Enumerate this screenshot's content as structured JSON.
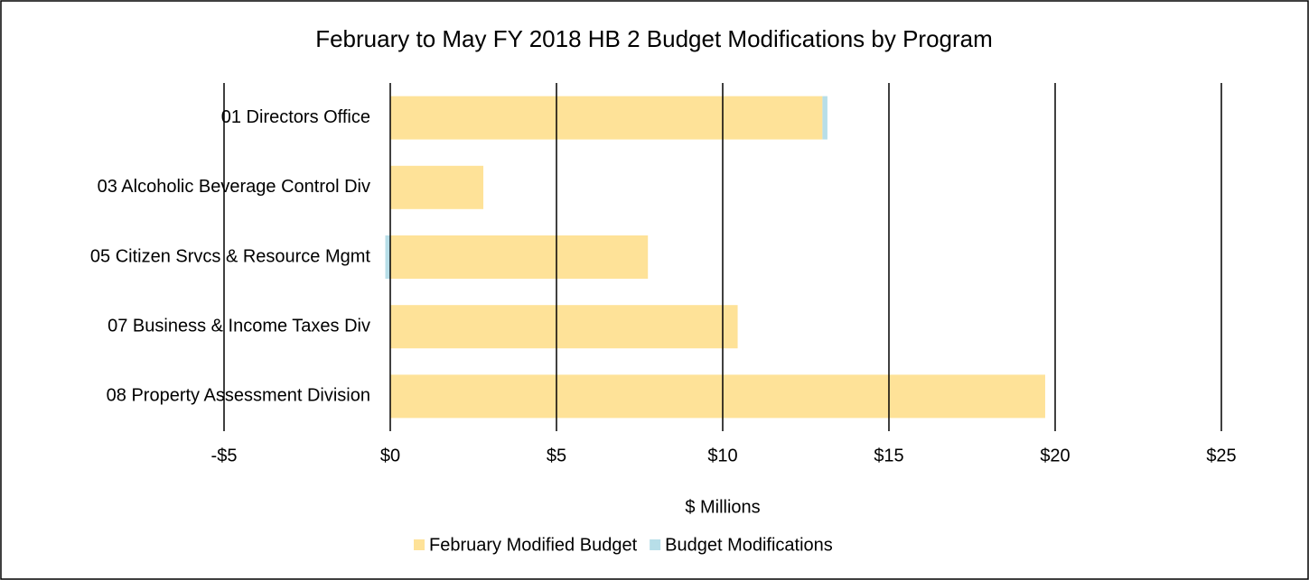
{
  "chart_data": {
    "type": "bar",
    "orientation": "horizontal",
    "stacked": true,
    "title": "February to May FY 2018 HB 2 Budget Modifications by Program",
    "x_label": "$ Millions",
    "categories": [
      "01 Directors Office",
      "03 Alcoholic Beverage Control Div",
      "05 Citizen Srvcs & Resource Mgmt",
      "07 Business & Income Taxes Div",
      "08 Property Assessment Division"
    ],
    "series": [
      {
        "name": "February Modified Budget",
        "color": "#fee298",
        "values": [
          13.0,
          2.8,
          7.75,
          10.45,
          19.7
        ]
      },
      {
        "name": "Budget Modifications",
        "color": "#b7dee8",
        "values": [
          0.15,
          0,
          -0.15,
          0,
          0
        ]
      }
    ],
    "xlim": [
      -5,
      25
    ],
    "xticks": [
      {
        "value": -5,
        "label": "-$5"
      },
      {
        "value": 0,
        "label": "$0"
      },
      {
        "value": 5,
        "label": "$5"
      },
      {
        "value": 10,
        "label": "$10"
      },
      {
        "value": 15,
        "label": "$15"
      },
      {
        "value": 20,
        "label": "$20"
      },
      {
        "value": 25,
        "label": "$25"
      }
    ],
    "grid": true,
    "legend": "bottom"
  }
}
